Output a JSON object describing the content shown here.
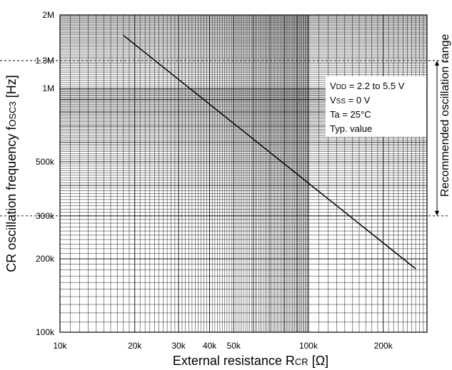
{
  "chart_data": {
    "type": "line",
    "xlabel": "External resistance RCR [Ω]",
    "xlabel_parts": {
      "prefix": "External resistance R",
      "sub": "CR",
      "suffix": " [Ω]"
    },
    "ylabel": "CR oscillation frequency fOSC3 [Hz]",
    "ylabel_parts": {
      "prefix": "CR oscillation frequency f",
      "sub": "OSC3",
      "suffix": " [Hz]"
    },
    "x_scale": "log",
    "y_scale": "log",
    "xlim": [
      10000,
      300000
    ],
    "ylim": [
      100000,
      2000000
    ],
    "grid": true,
    "x_ticks": [
      {
        "value": 10000,
        "label": "10k"
      },
      {
        "value": 20000,
        "label": "20k"
      },
      {
        "value": 30000,
        "label": "30k"
      },
      {
        "value": 40000,
        "label": "40k"
      },
      {
        "value": 50000,
        "label": "50k"
      },
      {
        "value": 100000,
        "label": "100k"
      },
      {
        "value": 200000,
        "label": "200k"
      }
    ],
    "y_ticks": [
      {
        "value": 100000,
        "label": "100k"
      },
      {
        "value": 200000,
        "label": "200k"
      },
      {
        "value": 300000,
        "label": "300k"
      },
      {
        "value": 500000,
        "label": "500k"
      },
      {
        "value": 1000000,
        "label": "1M"
      },
      {
        "value": 1300000,
        "label": "1.3M"
      },
      {
        "value": 2000000,
        "label": "2M"
      }
    ],
    "series": [
      {
        "x": [
          18000,
          270000
        ],
        "y": [
          1650000,
          182000
        ]
      }
    ],
    "reference_lines": [
      {
        "axis": "y",
        "value": 1300000,
        "style": "dashed"
      },
      {
        "axis": "y",
        "value": 300000,
        "style": "dashed"
      }
    ],
    "range_annotation": {
      "label": "Recommended oscillation range",
      "from": 300000,
      "to": 1300000
    },
    "conditions": [
      {
        "parts": [
          {
            "t": "V"
          },
          {
            "t": "DD",
            "sub": true
          },
          {
            "t": " = 2.2 to 5.5 V"
          }
        ]
      },
      {
        "parts": [
          {
            "t": "V"
          },
          {
            "t": "SS",
            "sub": true
          },
          {
            "t": " = 0 V"
          }
        ]
      },
      {
        "parts": [
          {
            "t": "Ta = 25°C"
          }
        ]
      },
      {
        "parts": [
          {
            "t": "Typ. value"
          }
        ]
      }
    ]
  }
}
